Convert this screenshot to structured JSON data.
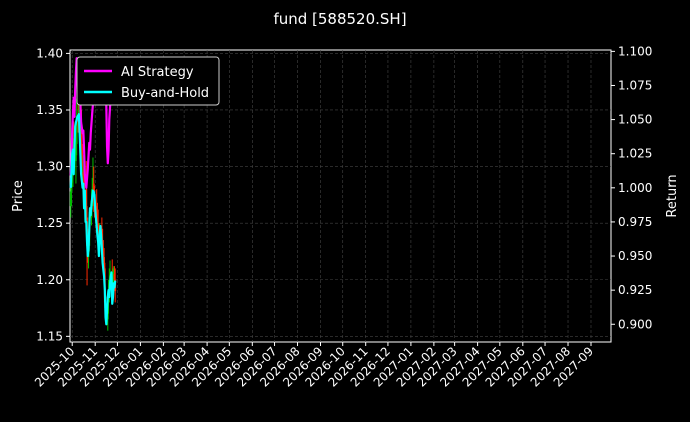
{
  "chart_data": {
    "type": "line",
    "title": "fund [588520.SH]",
    "ylabel_left": "Price",
    "ylabel_right": "Return",
    "xlim": [
      "2025-09-28",
      "2027-09-28"
    ],
    "ylim_left": [
      1.145,
      1.403
    ],
    "ylim_right": [
      0.887,
      1.101
    ],
    "grid": true,
    "legend_position": "top-left",
    "x_ticks": [
      "2025-10",
      "2025-11",
      "2025-12",
      "2026-01",
      "2026-02",
      "2026-03",
      "2026-04",
      "2026-05",
      "2026-06",
      "2026-07",
      "2026-08",
      "2026-09",
      "2026-10",
      "2026-11",
      "2026-12",
      "2027-01",
      "2027-02",
      "2027-03",
      "2027-04",
      "2027-05",
      "2027-06",
      "2027-07",
      "2027-08",
      "2027-09"
    ],
    "y_ticks_left": [
      "1.15",
      "1.20",
      "1.25",
      "1.30",
      "1.35",
      "1.40"
    ],
    "y_ticks_right": [
      "0.900",
      "0.925",
      "0.950",
      "0.975",
      "1.000",
      "1.025",
      "1.050",
      "1.075",
      "1.100"
    ],
    "colors": {
      "ai": "#ff00ff",
      "bh": "#00ffff",
      "up": "#00c000",
      "down": "#ff2a00",
      "grid": "#444444"
    },
    "series": [
      {
        "name": "AI Strategy",
        "x": [
          "2025-09-29",
          "2025-09-30",
          "2025-10-01",
          "2025-10-02",
          "2025-10-03",
          "2025-10-04",
          "2025-10-05",
          "2025-10-06",
          "2025-10-07",
          "2025-10-08",
          "2025-10-09",
          "2025-10-10",
          "2025-10-11",
          "2025-10-12",
          "2025-10-13",
          "2025-10-14",
          "2025-10-15",
          "2025-10-16",
          "2025-10-17",
          "2025-10-18",
          "2025-10-20",
          "2025-10-22",
          "2025-10-24",
          "2025-10-25",
          "2025-10-26",
          "2025-10-28",
          "2025-10-30",
          "2025-11-01",
          "2025-11-15",
          "2025-11-16",
          "2025-11-17",
          "2025-11-18",
          "2025-11-19",
          "2025-11-20",
          "2025-11-22"
        ],
        "values": [
          1.009,
          1.021,
          1.042,
          1.055,
          1.066,
          1.052,
          1.072,
          1.085,
          1.095,
          1.09,
          1.085,
          1.078,
          1.069,
          1.061,
          1.048,
          1.044,
          1.04,
          1.042,
          1.028,
          1.01,
          1.0,
          1.014,
          1.033,
          1.028,
          1.04,
          1.055,
          1.068,
          1.085,
          1.08,
          1.06,
          1.03,
          1.018,
          1.027,
          1.05,
          1.068
        ]
      },
      {
        "name": "Buy-and-Hold",
        "x": [
          "2025-09-29",
          "2025-09-30",
          "2025-10-01",
          "2025-10-02",
          "2025-10-03",
          "2025-10-04",
          "2025-10-05",
          "2025-10-06",
          "2025-10-07",
          "2025-10-08",
          "2025-10-09",
          "2025-10-10",
          "2025-10-11",
          "2025-10-12",
          "2025-10-13",
          "2025-10-14",
          "2025-10-15",
          "2025-10-16",
          "2025-10-17",
          "2025-10-18",
          "2025-10-19",
          "2025-10-20",
          "2025-10-21",
          "2025-10-22",
          "2025-10-23",
          "2025-10-24",
          "2025-10-25",
          "2025-10-26",
          "2025-10-27",
          "2025-10-28",
          "2025-10-29",
          "2025-10-30",
          "2025-10-31",
          "2025-11-01",
          "2025-11-02",
          "2025-11-03",
          "2025-11-04",
          "2025-11-05",
          "2025-11-06",
          "2025-11-07",
          "2025-11-08",
          "2025-11-09",
          "2025-11-10",
          "2025-11-11",
          "2025-11-12",
          "2025-11-13",
          "2025-11-14",
          "2025-11-15",
          "2025-11-16",
          "2025-11-17",
          "2025-11-18",
          "2025-11-19",
          "2025-11-20",
          "2025-11-21",
          "2025-11-22",
          "2025-11-23",
          "2025-11-24",
          "2025-11-25",
          "2025-11-26",
          "2025-11-27",
          "2025-11-28"
        ],
        "values": [
          1.0,
          1.012,
          1.025,
          1.028,
          1.01,
          1.03,
          1.045,
          1.048,
          1.05,
          1.052,
          1.053,
          1.054,
          1.04,
          1.025,
          1.01,
          1.005,
          1.0,
          1.003,
          0.985,
          0.998,
          0.975,
          0.975,
          0.96,
          0.95,
          0.955,
          0.97,
          0.985,
          0.98,
          0.988,
          0.993,
          0.998,
          0.997,
          0.995,
          0.985,
          0.978,
          0.972,
          0.965,
          0.96,
          0.95,
          0.965,
          0.972,
          0.965,
          0.955,
          0.945,
          0.94,
          0.935,
          0.925,
          0.905,
          0.9,
          0.91,
          0.92,
          0.925,
          0.92,
          0.93,
          0.935,
          0.938,
          0.915,
          0.92,
          0.93,
          0.927,
          0.932
        ]
      }
    ],
    "candles": {
      "dates": [
        "2025-09-29",
        "2025-09-30",
        "2025-10-02",
        "2025-10-03",
        "2025-10-06",
        "2025-10-07",
        "2025-10-09",
        "2025-10-10",
        "2025-10-13",
        "2025-10-14",
        "2025-10-15",
        "2025-10-16",
        "2025-10-17",
        "2025-10-20",
        "2025-10-21",
        "2025-10-22",
        "2025-10-23",
        "2025-10-24",
        "2025-10-27",
        "2025-10-28",
        "2025-10-29",
        "2025-10-30",
        "2025-10-31",
        "2025-11-03",
        "2025-11-04",
        "2025-11-05",
        "2025-11-06",
        "2025-11-07",
        "2025-11-10",
        "2025-11-11",
        "2025-11-12",
        "2025-11-13",
        "2025-11-14",
        "2025-11-17",
        "2025-11-18",
        "2025-11-19",
        "2025-11-20",
        "2025-11-21",
        "2025-11-24",
        "2025-11-25",
        "2025-11-26",
        "2025-11-27",
        "2025-11-28"
      ],
      "open": [
        1.265,
        1.278,
        1.292,
        1.305,
        1.305,
        1.32,
        1.345,
        1.34,
        1.35,
        1.32,
        1.3,
        1.295,
        1.3,
        1.28,
        1.255,
        1.23,
        1.22,
        1.23,
        1.255,
        1.27,
        1.275,
        1.285,
        1.27,
        1.265,
        1.26,
        1.25,
        1.245,
        1.232,
        1.245,
        1.235,
        1.225,
        1.22,
        1.21,
        1.175,
        1.165,
        1.18,
        1.19,
        1.195,
        1.205,
        1.195,
        1.2,
        1.205,
        1.2
      ],
      "high": [
        1.29,
        1.3,
        1.325,
        1.34,
        1.33,
        1.36,
        1.365,
        1.36,
        1.362,
        1.335,
        1.32,
        1.31,
        1.315,
        1.305,
        1.265,
        1.245,
        1.24,
        1.26,
        1.28,
        1.29,
        1.308,
        1.3,
        1.283,
        1.28,
        1.268,
        1.262,
        1.25,
        1.25,
        1.255,
        1.245,
        1.235,
        1.228,
        1.215,
        1.185,
        1.19,
        1.2,
        1.21,
        1.217,
        1.218,
        1.21,
        1.212,
        1.212,
        1.21
      ],
      "low": [
        1.255,
        1.265,
        1.282,
        1.295,
        1.285,
        1.31,
        1.33,
        1.33,
        1.31,
        1.29,
        1.283,
        1.28,
        1.265,
        1.245,
        1.195,
        1.215,
        1.21,
        1.225,
        1.248,
        1.262,
        1.265,
        1.26,
        1.255,
        1.25,
        1.24,
        1.235,
        1.22,
        1.222,
        1.225,
        1.215,
        1.208,
        1.205,
        1.175,
        1.16,
        1.155,
        1.17,
        1.18,
        1.185,
        1.195,
        1.185,
        1.19,
        1.195,
        1.18
      ],
      "close": [
        1.278,
        1.29,
        1.305,
        1.3,
        1.32,
        1.345,
        1.34,
        1.35,
        1.32,
        1.3,
        1.295,
        1.3,
        1.28,
        1.255,
        1.23,
        1.22,
        1.23,
        1.255,
        1.27,
        1.275,
        1.285,
        1.27,
        1.265,
        1.26,
        1.25,
        1.245,
        1.232,
        1.245,
        1.235,
        1.225,
        1.22,
        1.21,
        1.18,
        1.165,
        1.18,
        1.19,
        1.195,
        1.205,
        1.195,
        1.2,
        1.205,
        1.2,
        1.19
      ]
    }
  }
}
